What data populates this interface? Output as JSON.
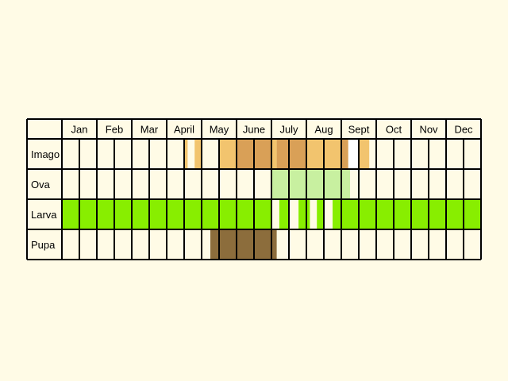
{
  "chart_data": {
    "type": "table",
    "months": [
      "Jan",
      "Feb",
      "Mar",
      "April",
      "May",
      "June",
      "July",
      "Aug",
      "Sept",
      "Oct",
      "Nov",
      "Dec"
    ],
    "cells_per_month": 2,
    "colors": {
      "background": "#fffbe6",
      "grid": "#000000",
      "imago_light": "#f2c46e",
      "imago_dark": "#d9a057",
      "ova": "#c8f0a0",
      "larva": "#88ee00",
      "pupa": "#8c6d3c",
      "gap": "#ffffff"
    },
    "rows": [
      {
        "label": "Imago",
        "segments": [
          {
            "start": 7.0,
            "end": 7.2,
            "color": "imago_light"
          },
          {
            "start": 7.6,
            "end": 8.0,
            "color": "imago_light"
          },
          {
            "start": 9.0,
            "end": 10.0,
            "color": "imago_light"
          },
          {
            "start": 10.0,
            "end": 12.0,
            "color": "imago_dark"
          },
          {
            "start": 12.0,
            "end": 12.3,
            "color": "imago_light"
          },
          {
            "start": 12.3,
            "end": 13.0,
            "color": "imago_dark"
          },
          {
            "start": 13.0,
            "end": 14.0,
            "color": "imago_dark"
          },
          {
            "start": 14.0,
            "end": 16.0,
            "color": "imago_light"
          },
          {
            "start": 16.0,
            "end": 16.4,
            "color": "imago_dark"
          },
          {
            "start": 16.4,
            "end": 17.0,
            "color": "gap"
          },
          {
            "start": 17.0,
            "end": 17.6,
            "color": "imago_light"
          }
        ]
      },
      {
        "label": "Ova",
        "segments": [
          {
            "start": 12.0,
            "end": 16.5,
            "color": "ova"
          }
        ]
      },
      {
        "label": "Larva",
        "segments": [
          {
            "start": 0.0,
            "end": 12.0,
            "color": "larva"
          },
          {
            "start": 12.45,
            "end": 13.0,
            "color": "larva"
          },
          {
            "start": 13.55,
            "end": 14.2,
            "color": "larva"
          },
          {
            "start": 14.6,
            "end": 15.0,
            "color": "larva"
          },
          {
            "start": 15.5,
            "end": 24.0,
            "color": "larva"
          }
        ]
      },
      {
        "label": "Pupa",
        "segments": [
          {
            "start": 8.5,
            "end": 12.3,
            "color": "pupa"
          }
        ]
      }
    ]
  }
}
